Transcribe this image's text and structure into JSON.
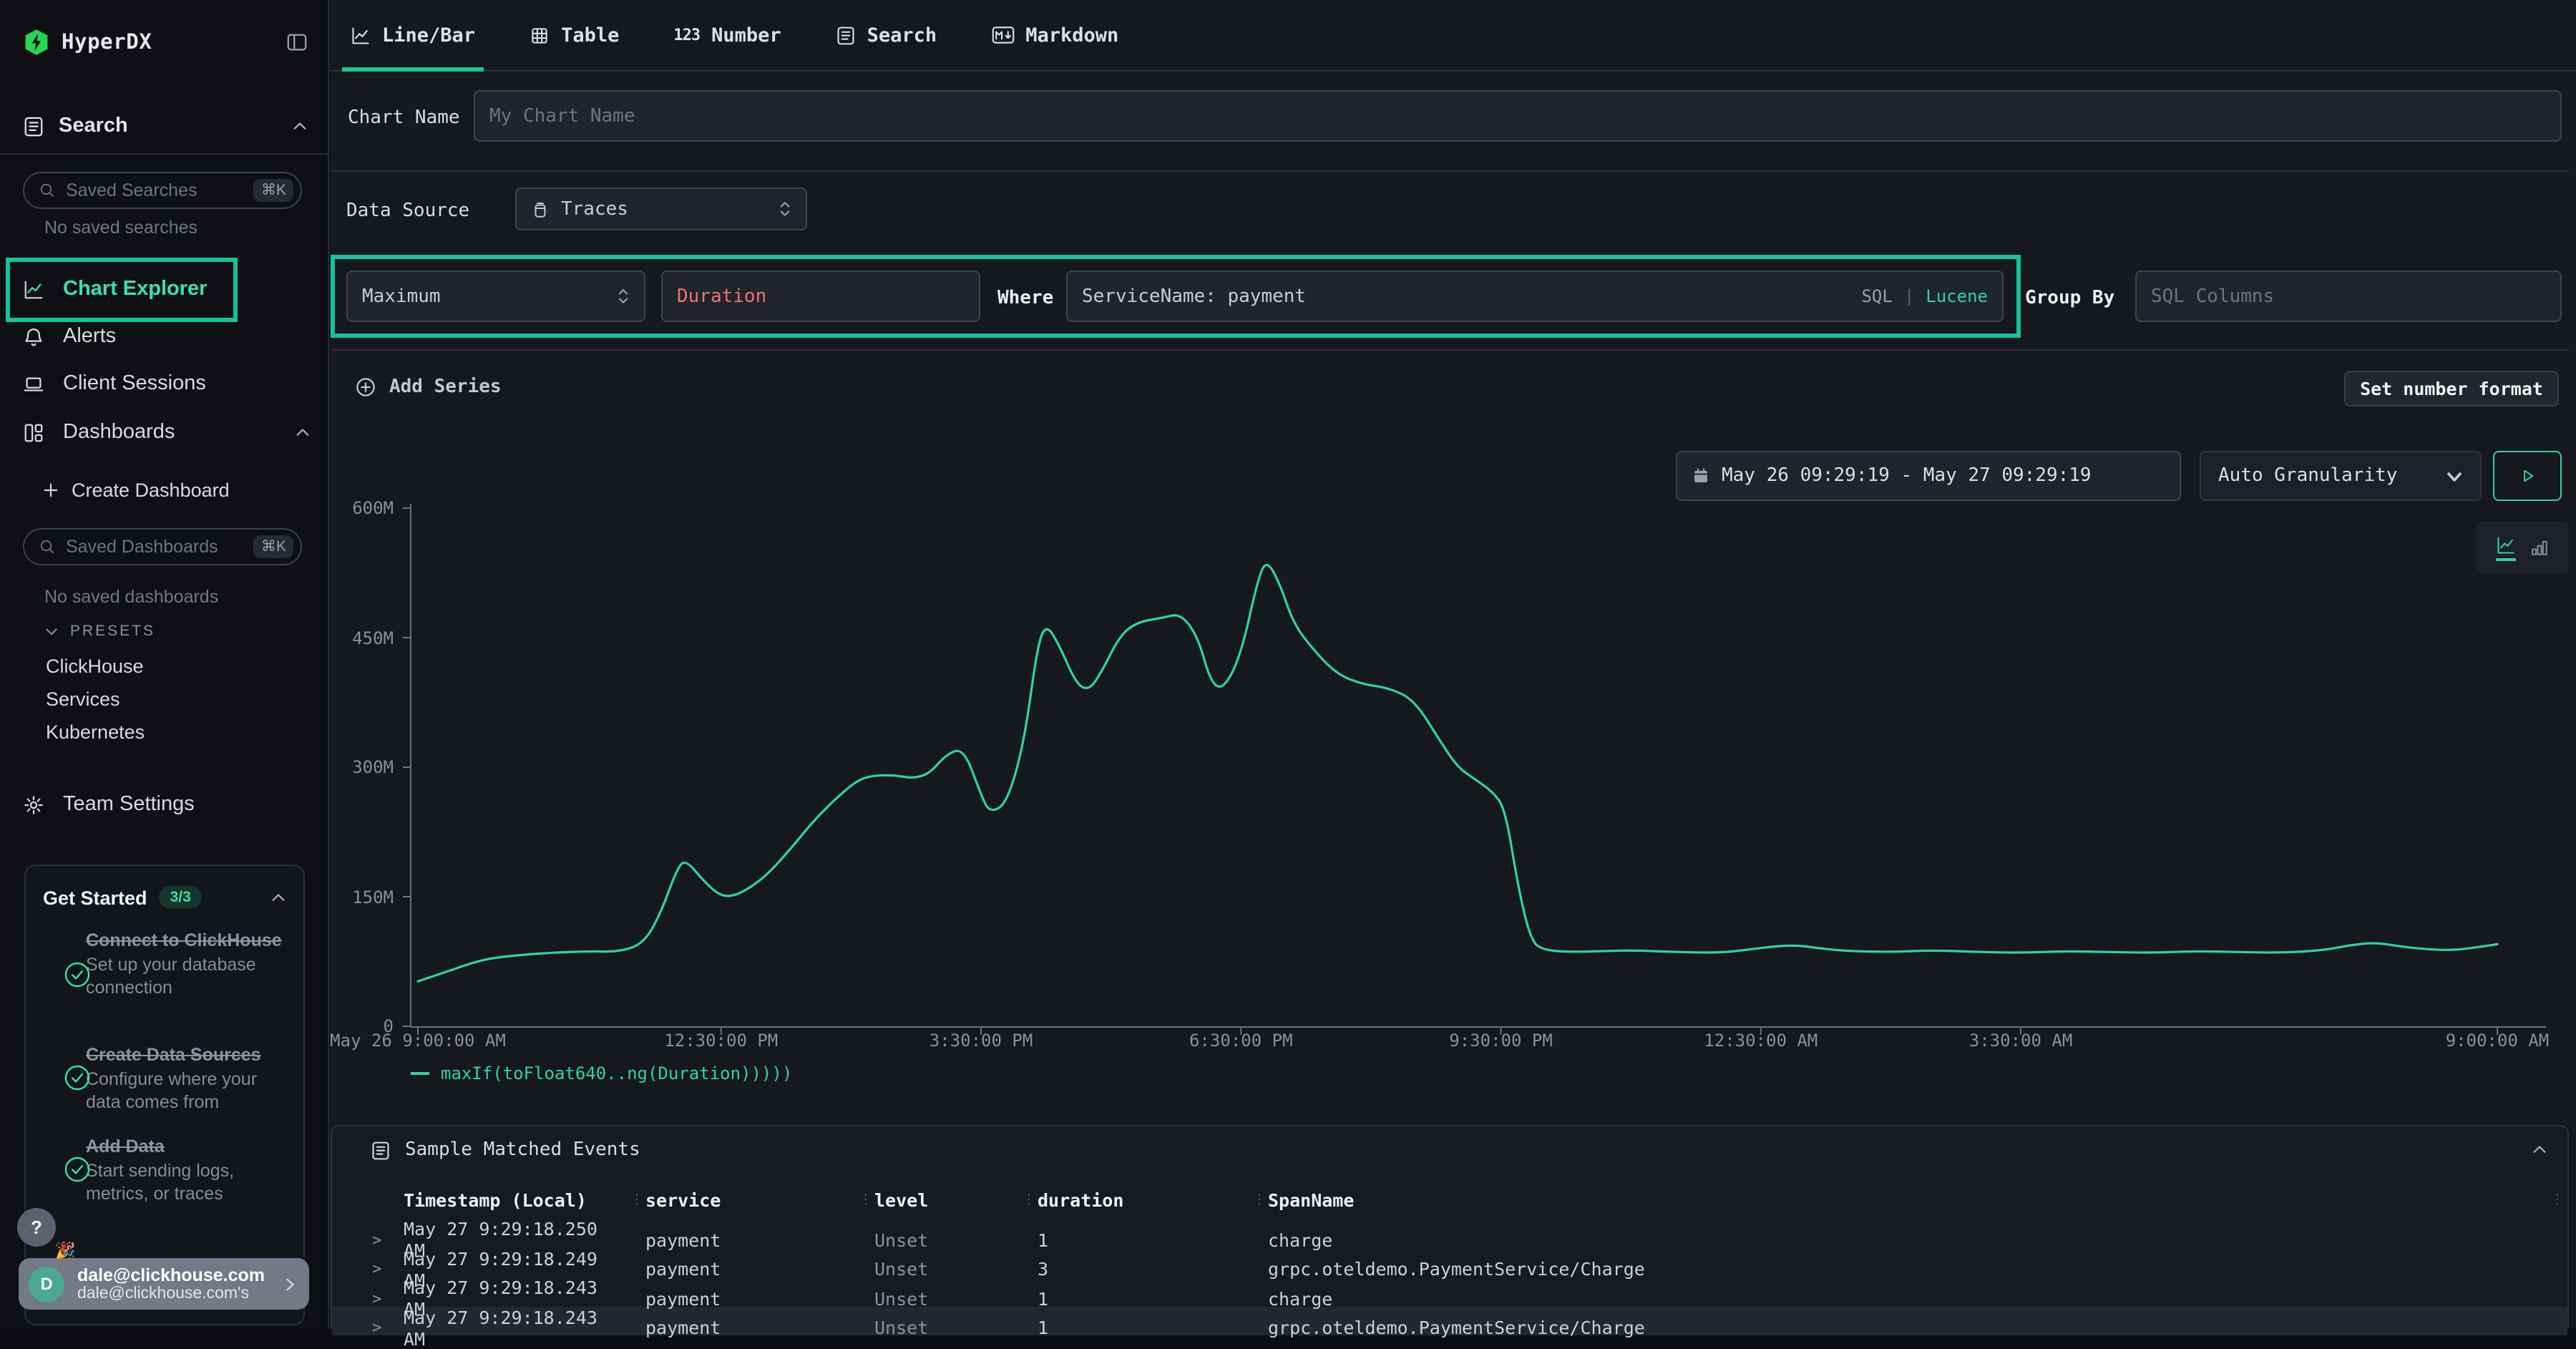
{
  "colors": {
    "accent": "#2ed3a2",
    "annotation": "#12c2a0",
    "logo_green": "#26d653",
    "field_red": "#ef6f73"
  },
  "sidebar": {
    "app_name": "HyperDX",
    "search_section": "Search",
    "saved_searches_placeholder": "Saved Searches",
    "shortcut_badge": "⌘K",
    "no_saved_searches": "No saved searches",
    "nav": [
      {
        "label": "Chart Explorer"
      },
      {
        "label": "Alerts"
      },
      {
        "label": "Client Sessions"
      },
      {
        "label": "Dashboards"
      }
    ],
    "create_dashboard_label": "Create Dashboard",
    "saved_dashboards_placeholder": "Saved Dashboards",
    "no_saved_dashboards": "No saved dashboards",
    "presets_label": "PRESETS",
    "presets": [
      {
        "label": "ClickHouse"
      },
      {
        "label": "Services"
      },
      {
        "label": "Kubernetes"
      }
    ],
    "team_settings_label": "Team Settings",
    "get_started": {
      "title": "Get Started",
      "badge": "3/3",
      "items": [
        {
          "title": "Connect to ClickHouse",
          "subtitle": "Set up your database connection"
        },
        {
          "title": "Create Data Sources",
          "subtitle": "Configure where your data comes from"
        },
        {
          "title": "Add Data",
          "subtitle": "Start sending logs, metrics, or traces"
        }
      ]
    },
    "help_label": "?",
    "user": {
      "avatar_initial": "D",
      "email": "dale@clickhouse.com",
      "org": "dale@clickhouse.com's"
    }
  },
  "tabs": [
    {
      "label": "Line/Bar"
    },
    {
      "label": "Table"
    },
    {
      "label": "Number"
    },
    {
      "label": "Search"
    },
    {
      "label": "Markdown"
    }
  ],
  "editor": {
    "chart_name_label": "Chart Name",
    "chart_name_placeholder": "My Chart Name",
    "data_source_label": "Data Source",
    "data_source_value": "Traces",
    "series": {
      "aggregation": "Maximum",
      "field": "Duration",
      "where_label": "Where",
      "where_value": "ServiceName: payment",
      "sql_label": "SQL",
      "lucene_label": "Lucene",
      "group_by_label": "Group By",
      "group_by_placeholder": "SQL Columns"
    },
    "add_series_label": "Add Series",
    "set_number_format_label": "Set number format",
    "time_range": "May 26 09:29:19 - May 27 09:29:19",
    "granularity": "Auto Granularity"
  },
  "chart_data": {
    "type": "line",
    "title": "",
    "xlabel": "",
    "ylabel": "",
    "legend_position": "bottom-left",
    "grid": false,
    "ylim": [
      0,
      600000000
    ],
    "y_ticks": [
      {
        "label": "0",
        "value": 0
      },
      {
        "label": "150M",
        "value": 150
      },
      {
        "label": "300M",
        "value": 300
      },
      {
        "label": "450M",
        "value": 450
      },
      {
        "label": "600M",
        "value": 600
      }
    ],
    "x_range": [
      "May 26 9:00:00 AM",
      "May 27 9:00:00 AM"
    ],
    "x_range_hours": 24,
    "x_ticks": [
      {
        "label": "May 26 9:00:00 AM",
        "hour": 0
      },
      {
        "label": "12:30:00 PM",
        "hour": 3.5
      },
      {
        "label": "3:30:00 PM",
        "hour": 6.5
      },
      {
        "label": "6:30:00 PM",
        "hour": 9.5
      },
      {
        "label": "9:30:00 PM",
        "hour": 12.5
      },
      {
        "label": "12:30:00 AM",
        "hour": 15.5
      },
      {
        "label": "3:30:00 AM",
        "hour": 18.5
      },
      {
        "label": "9:00:00 AM",
        "hour": 24
      }
    ],
    "series": [
      {
        "name": "maxIf(toFloat640..ng(Duration)))))",
        "unit": "millions",
        "points": [
          [
            0,
            52
          ],
          [
            0.3,
            62
          ],
          [
            0.7,
            76
          ],
          [
            1,
            81
          ],
          [
            1.5,
            85
          ],
          [
            2,
            87
          ],
          [
            2.3,
            86
          ],
          [
            2.6,
            95
          ],
          [
            2.8,
            130
          ],
          [
            3.0,
            185
          ],
          [
            3.1,
            192
          ],
          [
            3.3,
            168
          ],
          [
            3.5,
            150
          ],
          [
            3.7,
            152
          ],
          [
            4,
            172
          ],
          [
            4.3,
            205
          ],
          [
            4.6,
            242
          ],
          [
            5,
            280
          ],
          [
            5.2,
            290
          ],
          [
            5.5,
            291
          ],
          [
            5.7,
            287
          ],
          [
            5.9,
            292
          ],
          [
            6.1,
            315
          ],
          [
            6.3,
            322
          ],
          [
            6.5,
            268
          ],
          [
            6.6,
            247
          ],
          [
            6.8,
            258
          ],
          [
            7.0,
            330
          ],
          [
            7.15,
            440
          ],
          [
            7.25,
            466
          ],
          [
            7.4,
            442
          ],
          [
            7.6,
            396
          ],
          [
            7.75,
            389
          ],
          [
            7.9,
            412
          ],
          [
            8.1,
            452
          ],
          [
            8.3,
            468
          ],
          [
            8.6,
            473
          ],
          [
            8.8,
            478
          ],
          [
            9.0,
            452
          ],
          [
            9.15,
            398
          ],
          [
            9.3,
            390
          ],
          [
            9.5,
            430
          ],
          [
            9.7,
            520
          ],
          [
            9.8,
            540
          ],
          [
            9.95,
            512
          ],
          [
            10.1,
            468
          ],
          [
            10.3,
            440
          ],
          [
            10.6,
            408
          ],
          [
            10.9,
            396
          ],
          [
            11.2,
            392
          ],
          [
            11.5,
            378
          ],
          [
            11.8,
            330
          ],
          [
            12.0,
            300
          ],
          [
            12.2,
            286
          ],
          [
            12.4,
            272
          ],
          [
            12.55,
            252
          ],
          [
            12.7,
            160
          ],
          [
            12.85,
            98
          ],
          [
            13,
            88
          ],
          [
            13.3,
            86
          ],
          [
            13.7,
            87
          ],
          [
            14,
            88
          ],
          [
            14.5,
            86
          ],
          [
            15,
            85
          ],
          [
            15.3,
            88
          ],
          [
            15.6,
            92
          ],
          [
            15.9,
            94
          ],
          [
            16.2,
            90
          ],
          [
            16.5,
            87
          ],
          [
            17,
            86
          ],
          [
            17.5,
            88
          ],
          [
            18,
            86
          ],
          [
            18.5,
            85
          ],
          [
            19,
            87
          ],
          [
            19.5,
            86
          ],
          [
            20,
            85
          ],
          [
            20.5,
            87
          ],
          [
            21,
            86
          ],
          [
            21.5,
            85
          ],
          [
            22,
            88
          ],
          [
            22.3,
            94
          ],
          [
            22.6,
            97
          ],
          [
            22.9,
            92
          ],
          [
            23.2,
            89
          ],
          [
            23.5,
            88
          ],
          [
            23.8,
            92
          ],
          [
            24,
            95
          ]
        ]
      }
    ]
  },
  "events": {
    "title": "Sample Matched Events",
    "columns": [
      "Timestamp (Local)",
      "service",
      "level",
      "duration",
      "SpanName"
    ],
    "rows": [
      [
        "May 27 9:29:18.250 AM",
        "payment",
        "Unset",
        "1",
        "charge"
      ],
      [
        "May 27 9:29:18.249 AM",
        "payment",
        "Unset",
        "3",
        "grpc.oteldemo.PaymentService/Charge"
      ],
      [
        "May 27 9:29:18.243 AM",
        "payment",
        "Unset",
        "1",
        "charge"
      ],
      [
        "May 27 9:29:18.243 AM",
        "payment",
        "Unset",
        "1",
        "grpc.oteldemo.PaymentService/Charge"
      ]
    ]
  }
}
